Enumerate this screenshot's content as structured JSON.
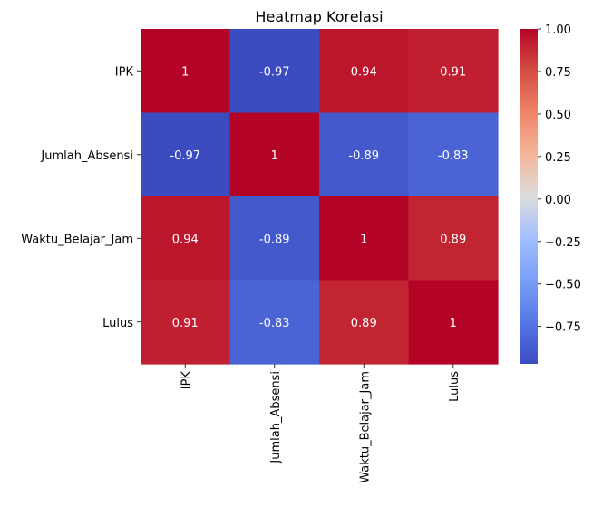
{
  "chart_data": {
    "type": "heatmap",
    "title": "Heatmap Korelasi",
    "rows": [
      "IPK",
      "Jumlah_Absensi",
      "Waktu_Belajar_Jam",
      "Lulus"
    ],
    "columns": [
      "IPK",
      "Jumlah_Absensi",
      "Waktu_Belajar_Jam",
      "Lulus"
    ],
    "values": [
      [
        1,
        -0.97,
        0.94,
        0.91
      ],
      [
        -0.97,
        1,
        -0.89,
        -0.83
      ],
      [
        0.94,
        -0.89,
        1,
        0.89
      ],
      [
        0.91,
        -0.83,
        0.89,
        1
      ]
    ],
    "annotations": [
      [
        "1",
        "-0.97",
        "0.94",
        "0.91"
      ],
      [
        "-0.97",
        "1",
        "-0.89",
        "-0.83"
      ],
      [
        "0.94",
        "-0.89",
        "1",
        "0.89"
      ],
      [
        "0.91",
        "-0.83",
        "0.89",
        "1"
      ]
    ],
    "colormap": "coolwarm",
    "color_range": [
      -0.97,
      1.0
    ],
    "colorbar_ticks": [
      1.0,
      0.75,
      0.5,
      0.25,
      0.0,
      -0.25,
      -0.5,
      -0.75
    ],
    "colorbar_tick_labels": [
      "1.00",
      "0.75",
      "0.50",
      "0.25",
      "0.00",
      "−0.25",
      "−0.50",
      "−0.75"
    ],
    "colorbar_placement": "right"
  }
}
